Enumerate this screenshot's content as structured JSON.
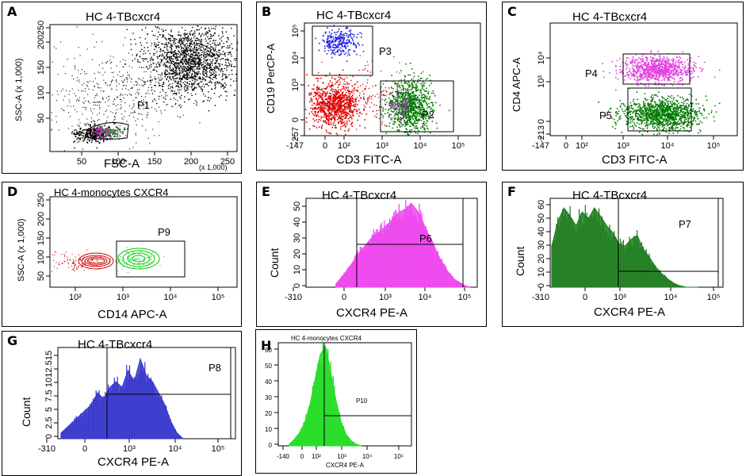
{
  "panels": {
    "A": {
      "letter": "A",
      "title": "HC 4-TBcxcr4",
      "xlabel": "FSC-A",
      "ylabel": "SSC-A (x 1,000)",
      "xunit": "(x 1,000)",
      "gate": "P1",
      "xticks": [
        "50",
        "100",
        "150",
        "200",
        "250"
      ],
      "yticks": [
        "50",
        "100",
        "150",
        "200",
        "250"
      ]
    },
    "B": {
      "letter": "B",
      "title": "HC 4-TBcxcr4",
      "xlabel": "CD3 FITC-A",
      "ylabel": "CD19 PerCP-A",
      "gates": [
        "P3",
        "P2"
      ],
      "xticks": [
        "-147",
        "0",
        "10²",
        "10³",
        "10⁴",
        "10⁵"
      ],
      "yticks": [
        "-257",
        "0",
        "10³",
        "10⁴",
        "10⁵"
      ]
    },
    "C": {
      "letter": "C",
      "title": "HC 4-TBcxcr4",
      "xlabel": "CD3 FITC-A",
      "ylabel": "CD4 APC-A",
      "gates": [
        "P4",
        "P5"
      ],
      "xticks": [
        "-147",
        "0",
        "10²",
        "10³",
        "10⁴",
        "10⁵"
      ],
      "yticks": [
        "-213",
        "0",
        "10³",
        "10⁴"
      ]
    },
    "D": {
      "letter": "D",
      "title": "HC 4-monocytes CXCR4",
      "xlabel": "CD14 APC-A",
      "ylabel": "SSC-A (x 1,000)",
      "gate": "P9",
      "xticks": [
        "10²",
        "10³",
        "10⁴",
        "10⁵"
      ],
      "yticks": [
        "50",
        "100",
        "150",
        "200",
        "250"
      ]
    },
    "E": {
      "letter": "E",
      "title": "HC 4-TBcxcr4",
      "xlabel": "CXCR4 PE-A",
      "ylabel": "Count",
      "gate": "P6",
      "xticks": [
        "-310",
        "0",
        "10³",
        "10⁴",
        "10⁵"
      ],
      "yticks": [
        "0",
        "10",
        "20",
        "30",
        "40",
        "50"
      ]
    },
    "F": {
      "letter": "F",
      "title": "HC 4-TBcxcr4",
      "xlabel": "CXCR4 PE-A",
      "ylabel": "Count",
      "gate": "P7",
      "xticks": [
        "-310",
        "0",
        "10³",
        "10⁴",
        "10⁵"
      ],
      "yticks": [
        "0",
        "10",
        "20",
        "30",
        "40",
        "50",
        "60"
      ]
    },
    "G": {
      "letter": "G",
      "title": "HC 4-TBcxcr4",
      "xlabel": "CXCR4 PE-A",
      "ylabel": "Count",
      "gate": "P8",
      "xticks": [
        "-310",
        "0",
        "10³",
        "10⁴",
        "10⁵"
      ],
      "yticks": [
        "0",
        "2.5",
        "5",
        "7.5",
        "10",
        "12.5",
        "15"
      ]
    },
    "H": {
      "letter": "H",
      "title": "HC 4-monocytes CXCR4",
      "xlabel": "CXCR4 PE-A",
      "ylabel": "",
      "gate": "P10",
      "xticks": [
        "-140",
        "0",
        "10²",
        "10³",
        "10⁴",
        "10⁵"
      ],
      "yticks": [
        "0",
        "10",
        "20",
        "30",
        "40",
        "50",
        "60"
      ]
    }
  },
  "chart_data": [
    {
      "panel": "A",
      "type": "scatter",
      "title": "HC 4-TBcxcr4",
      "xlabel": "FSC-A",
      "ylabel": "SSC-A",
      "xlim": [
        0,
        262
      ],
      "ylim": [
        0,
        262
      ],
      "populations": [
        {
          "name": "",
          "center": [
            190,
            190
          ],
          "color": "#000000"
        },
        {
          "name": "P1",
          "center": [
            65,
            40
          ],
          "color": "#000000"
        }
      ],
      "gate": {
        "name": "P1",
        "x": [
          50,
          110
        ],
        "y": [
          25,
          60
        ]
      }
    },
    {
      "panel": "B",
      "type": "scatter",
      "title": "HC 4-TBcxcr4",
      "xlabel": "CD3 FITC-A",
      "ylabel": "CD19 PerCP-A",
      "populations": [
        {
          "name": "P3",
          "color": "#2020e0"
        },
        {
          "name": "P2",
          "color": "#007a00"
        },
        {
          "name": "",
          "color": "#e00000"
        }
      ]
    },
    {
      "panel": "C",
      "type": "scatter",
      "title": "HC 4-TBcxcr4",
      "xlabel": "CD3 FITC-A",
      "ylabel": "CD4 APC-A",
      "populations": [
        {
          "name": "P4",
          "color": "#e040e0"
        },
        {
          "name": "P5",
          "color": "#007a00"
        }
      ]
    },
    {
      "panel": "D",
      "type": "contour",
      "title": "HC 4-monocytes CXCR4",
      "xlabel": "CD14 APC-A",
      "ylabel": "SSC-A",
      "populations": [
        {
          "name": "",
          "color": "#d00000"
        },
        {
          "name": "P9",
          "color": "#00cc00"
        }
      ]
    },
    {
      "panel": "E",
      "type": "area",
      "title": "HC 4-TBcxcr4",
      "xlabel": "CXCR4 PE-A",
      "ylabel": "Count",
      "ylim": [
        0,
        55
      ],
      "color": "#ee44ee",
      "x": [
        0.4,
        0.48,
        0.56,
        0.64,
        0.72,
        0.8,
        0.88,
        0.96,
        1.04,
        1.12,
        1.2,
        1.28,
        1.36,
        1.44,
        1.52,
        1.6,
        1.68,
        1.76,
        1.84,
        1.92,
        2.0,
        2.08,
        2.16,
        2.24,
        2.32,
        2.4
      ],
      "values": [
        2,
        6,
        10,
        15,
        20,
        24,
        28,
        32,
        34,
        37,
        40,
        44,
        47,
        48,
        52,
        48,
        42,
        34,
        28,
        20,
        14,
        9,
        5,
        3,
        1,
        0
      ]
    },
    {
      "panel": "F",
      "type": "area",
      "title": "HC 4-TBcxcr4",
      "xlabel": "CXCR4 PE-A",
      "ylabel": "Count",
      "ylim": [
        0,
        65
      ],
      "color": "#1a7a1a",
      "x": [
        0.0,
        0.1,
        0.2,
        0.3,
        0.4,
        0.5,
        0.6,
        0.7,
        0.8,
        0.9,
        1.0,
        1.1,
        1.2,
        1.3,
        1.4,
        1.5,
        1.6,
        1.7,
        1.8,
        1.9,
        2.0,
        2.1,
        2.2,
        2.3,
        2.4
      ],
      "values": [
        30,
        48,
        58,
        52,
        45,
        55,
        50,
        58,
        52,
        45,
        40,
        32,
        30,
        35,
        38,
        28,
        22,
        15,
        10,
        6,
        3,
        1,
        0,
        0,
        0
      ]
    },
    {
      "panel": "G",
      "type": "area",
      "title": "HC 4-TBcxcr4",
      "xlabel": "CXCR4 PE-A",
      "ylabel": "Count",
      "ylim": [
        0,
        16
      ],
      "color": "#3333cc",
      "x": [
        0.0,
        0.1,
        0.2,
        0.3,
        0.4,
        0.5,
        0.6,
        0.7,
        0.8,
        0.9,
        1.0,
        1.1,
        1.2,
        1.3,
        1.4,
        1.5,
        1.6,
        1.7,
        1.8,
        1.9,
        2.0
      ],
      "values": [
        1,
        2,
        3,
        4,
        5,
        6,
        8,
        7,
        9,
        10,
        9,
        12,
        10,
        14,
        11,
        10,
        8,
        6,
        3,
        1,
        0
      ]
    },
    {
      "panel": "H",
      "type": "area",
      "title": "HC 4-monocytes CXCR4",
      "xlabel": "CXCR4 PE-A",
      "ylabel": "",
      "ylim": [
        0,
        62
      ],
      "color": "#22dd22",
      "x": [
        0.0,
        0.1,
        0.2,
        0.3,
        0.4,
        0.5,
        0.6,
        0.7,
        0.8,
        0.9,
        1.0,
        1.1,
        1.2,
        1.3,
        1.4
      ],
      "values": [
        1,
        4,
        8,
        14,
        25,
        40,
        55,
        60,
        45,
        28,
        15,
        7,
        3,
        1,
        0
      ]
    }
  ]
}
